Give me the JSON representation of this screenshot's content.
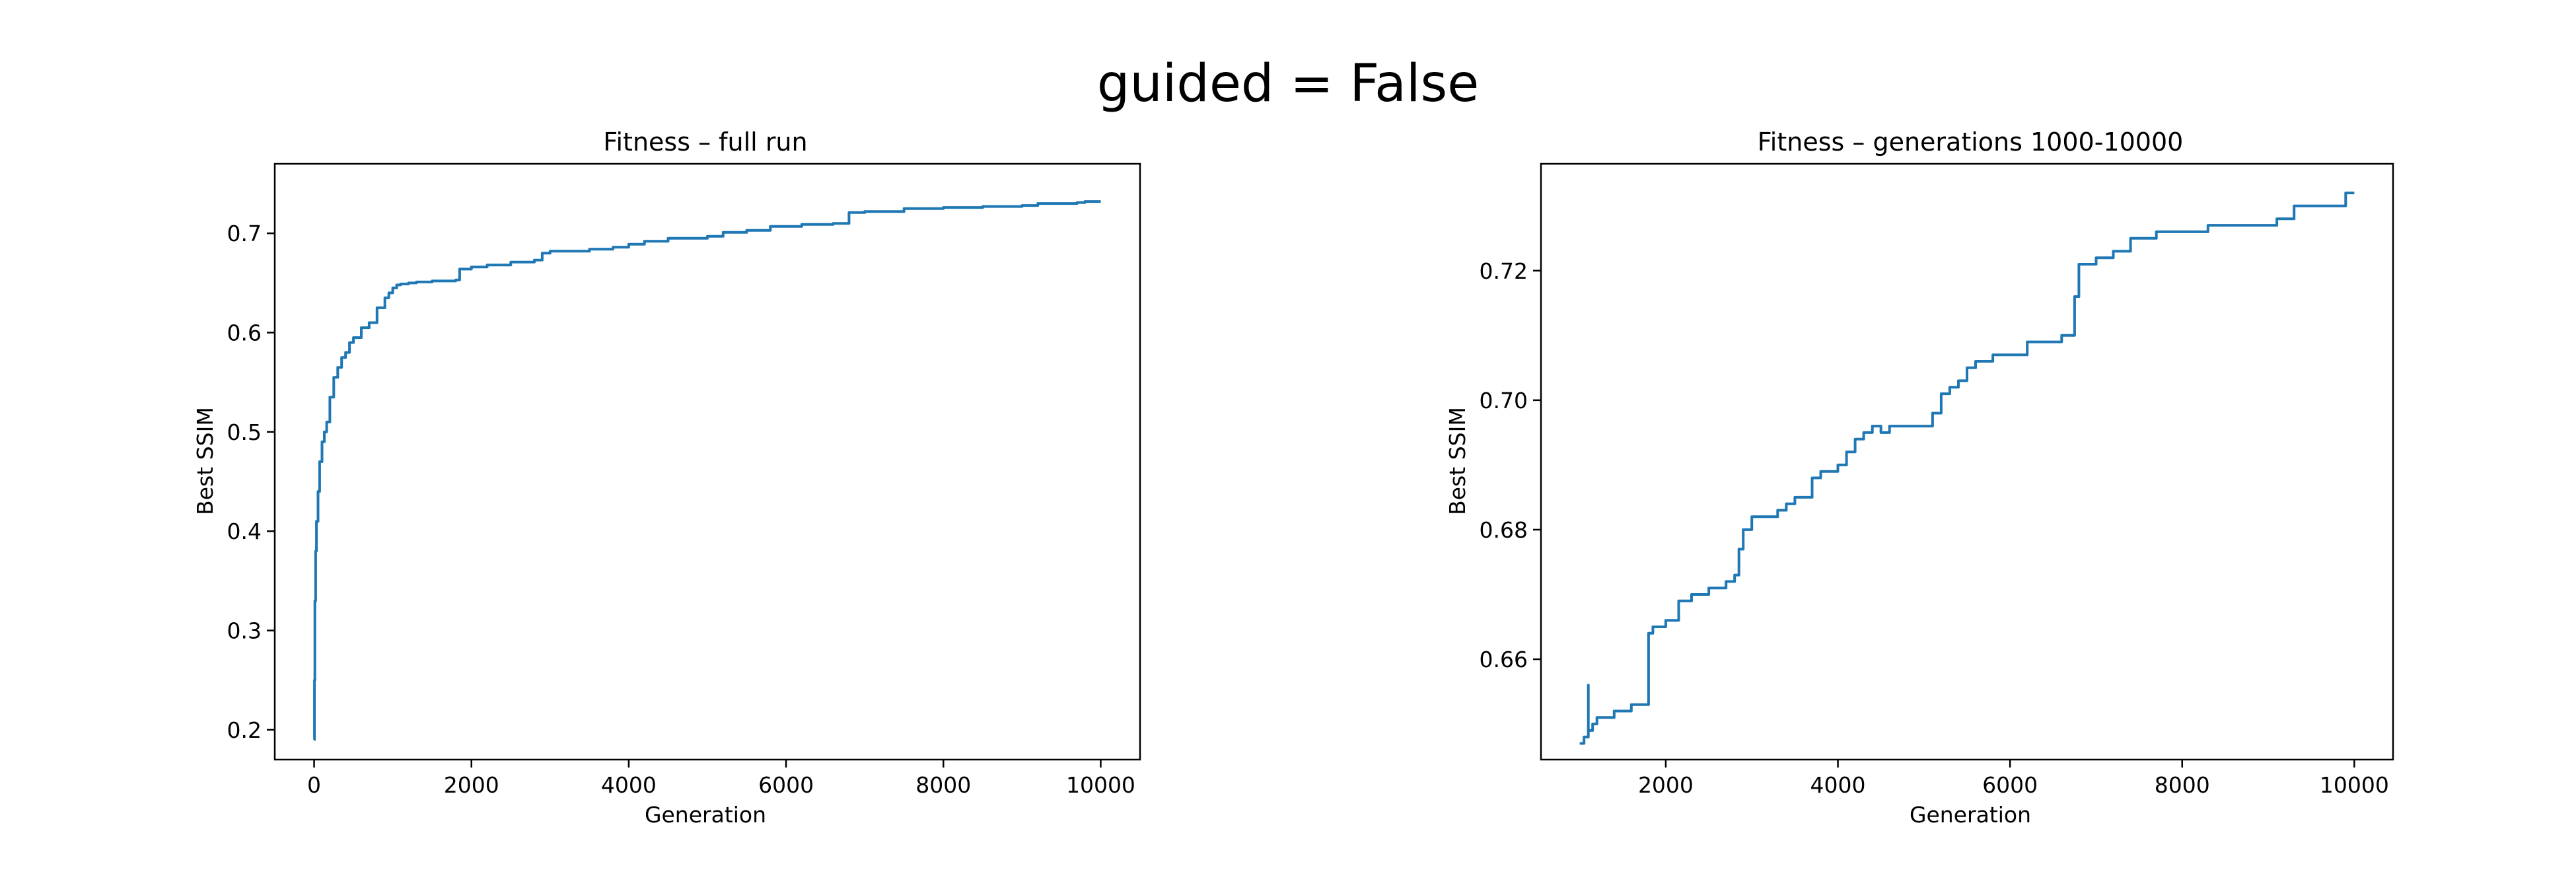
{
  "figure": {
    "suptitle": "guided = False"
  },
  "colors": {
    "line": "#1f77b4",
    "axes": "#000000",
    "background": "#ffffff"
  },
  "chart_data": [
    {
      "type": "line",
      "title": "Fitness – full run",
      "xlabel": "Generation",
      "ylabel": "Best SSIM",
      "xlim": [
        -500,
        10500
      ],
      "ylim": [
        0.17,
        0.77
      ],
      "xticks": [
        0,
        2000,
        4000,
        6000,
        8000,
        10000
      ],
      "xtick_labels": [
        "0",
        "2000",
        "4000",
        "6000",
        "8000",
        "10000"
      ],
      "yticks": [
        0.2,
        0.3,
        0.4,
        0.5,
        0.6,
        0.7
      ],
      "ytick_labels": [
        "0.2",
        "0.3",
        "0.4",
        "0.5",
        "0.6",
        "0.7"
      ],
      "grid": false,
      "series": [
        {
          "x": [
            0,
            5,
            10,
            20,
            30,
            50,
            70,
            100,
            130,
            160,
            200,
            250,
            300,
            350,
            400,
            450,
            500,
            600,
            700,
            800,
            900,
            950,
            1000,
            1050,
            1100,
            1200,
            1300,
            1500,
            1800,
            1850,
            2000,
            2200,
            2500,
            2800,
            2900,
            3000,
            3200,
            3500,
            3800,
            4000,
            4200,
            4500,
            4800,
            5000,
            5200,
            5500,
            5800,
            6000,
            6200,
            6600,
            6800,
            7000,
            7500,
            8000,
            8500,
            9000,
            9200,
            9500,
            9700,
            9800,
            10000
          ],
          "y": [
            0.19,
            0.25,
            0.33,
            0.38,
            0.41,
            0.44,
            0.47,
            0.49,
            0.5,
            0.51,
            0.535,
            0.555,
            0.565,
            0.575,
            0.58,
            0.59,
            0.595,
            0.605,
            0.61,
            0.625,
            0.635,
            0.64,
            0.645,
            0.648,
            0.649,
            0.65,
            0.651,
            0.652,
            0.653,
            0.664,
            0.666,
            0.668,
            0.671,
            0.673,
            0.68,
            0.682,
            0.682,
            0.684,
            0.686,
            0.689,
            0.692,
            0.695,
            0.695,
            0.697,
            0.701,
            0.703,
            0.707,
            0.707,
            0.709,
            0.71,
            0.721,
            0.722,
            0.725,
            0.726,
            0.727,
            0.728,
            0.73,
            0.73,
            0.731,
            0.732,
            0.732
          ]
        }
      ]
    },
    {
      "type": "line",
      "title": "Fitness – generations 1000-10000",
      "xlabel": "Generation",
      "ylabel": "Best SSIM",
      "xlim": [
        550,
        10450
      ],
      "ylim": [
        0.6445,
        0.7365
      ],
      "xticks": [
        2000,
        4000,
        6000,
        8000,
        10000
      ],
      "xtick_labels": [
        "2000",
        "4000",
        "6000",
        "8000",
        "10000"
      ],
      "yticks": [
        0.66,
        0.68,
        0.7,
        0.72
      ],
      "ytick_labels": [
        "0.66",
        "0.68",
        "0.70",
        "0.72"
      ],
      "grid": false,
      "series": [
        {
          "x": [
            1000,
            1050,
            1100,
            1100,
            1100,
            1150,
            1200,
            1300,
            1400,
            1500,
            1600,
            1700,
            1800,
            1800,
            1850,
            1900,
            2000,
            2150,
            2300,
            2500,
            2700,
            2800,
            2850,
            2900,
            3000,
            3100,
            3200,
            3300,
            3400,
            3500,
            3700,
            3800,
            4000,
            4100,
            4200,
            4300,
            4400,
            4500,
            4600,
            4800,
            5000,
            5100,
            5200,
            5300,
            5400,
            5500,
            5600,
            5800,
            6000,
            6200,
            6400,
            6600,
            6750,
            6800,
            6850,
            7000,
            7200,
            7400,
            7500,
            7700,
            7900,
            8000,
            8300,
            8600,
            8900,
            9100,
            9300,
            9500,
            9700,
            9800,
            9900,
            10000
          ],
          "y": [
            0.647,
            0.648,
            0.649,
            0.656,
            0.649,
            0.65,
            0.651,
            0.651,
            0.652,
            0.652,
            0.653,
            0.653,
            0.654,
            0.664,
            0.665,
            0.665,
            0.666,
            0.669,
            0.67,
            0.671,
            0.672,
            0.673,
            0.677,
            0.68,
            0.682,
            0.682,
            0.682,
            0.683,
            0.684,
            0.685,
            0.688,
            0.689,
            0.69,
            0.692,
            0.694,
            0.695,
            0.696,
            0.695,
            0.696,
            0.696,
            0.696,
            0.698,
            0.701,
            0.702,
            0.703,
            0.705,
            0.706,
            0.707,
            0.707,
            0.709,
            0.709,
            0.71,
            0.716,
            0.721,
            0.721,
            0.722,
            0.723,
            0.725,
            0.725,
            0.726,
            0.726,
            0.726,
            0.727,
            0.727,
            0.727,
            0.728,
            0.73,
            0.73,
            0.73,
            0.73,
            0.732,
            0.732
          ]
        }
      ]
    }
  ]
}
